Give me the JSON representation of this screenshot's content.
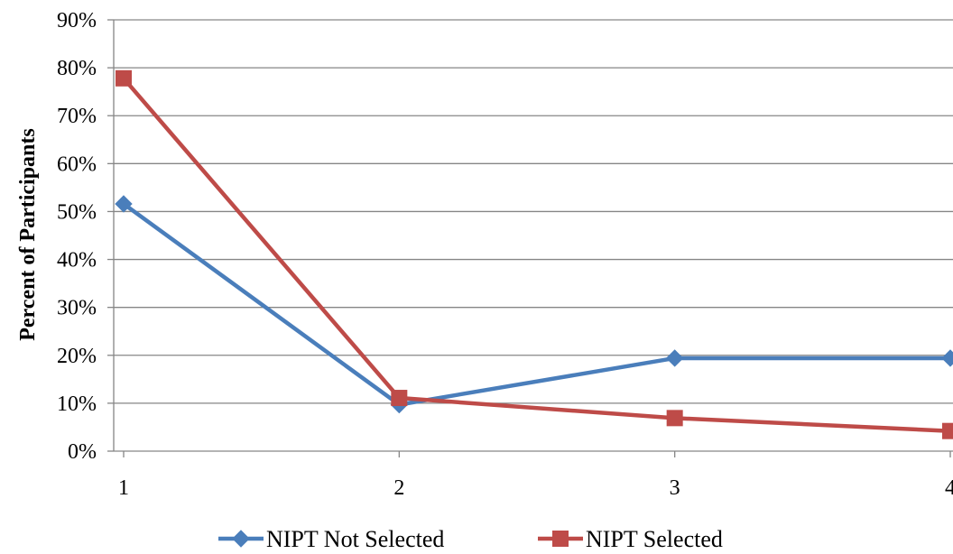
{
  "chart_data": {
    "type": "line",
    "title": "",
    "xlabel": "",
    "ylabel": "Percent of Participants",
    "categories": [
      "1",
      "2",
      "3",
      "4"
    ],
    "ylim": [
      0,
      0.9
    ],
    "yticks": [
      "0%",
      "10%",
      "20%",
      "30%",
      "40%",
      "50%",
      "60%",
      "70%",
      "80%",
      "90%"
    ],
    "grid": true,
    "legend_position": "bottom",
    "series": [
      {
        "name": "NIPT Not Selected",
        "values": [
          0.516,
          0.097,
          0.194,
          0.194
        ],
        "color": "#4a7ebb",
        "marker": "diamond"
      },
      {
        "name": "NIPT Selected",
        "values": [
          0.778,
          0.111,
          0.069,
          0.042
        ],
        "color": "#be4b48",
        "marker": "square"
      }
    ]
  }
}
